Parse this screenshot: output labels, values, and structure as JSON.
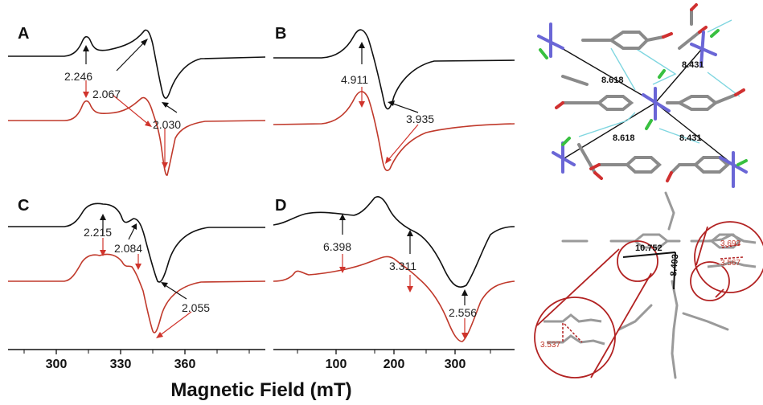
{
  "figure": {
    "xlabel": "Magnetic Field (mT)",
    "colors": {
      "black_trace": "#111111",
      "red_trace": "#c0392b",
      "arrow_black": "#111111",
      "arrow_red": "#d0342c"
    }
  },
  "panels": [
    {
      "label": "A",
      "gvalues": [
        "2.246",
        "2.067",
        "2.030"
      ]
    },
    {
      "label": "B",
      "gvalues": [
        "4.911",
        "3.935"
      ]
    },
    {
      "label": "C",
      "gvalues": [
        "2.215",
        "2.084",
        "2.055"
      ]
    },
    {
      "label": "D",
      "gvalues": [
        "6.398",
        "3.311",
        "2.556"
      ]
    }
  ],
  "axes": {
    "left": {
      "ticks": [
        "300",
        "330",
        "360"
      ]
    },
    "right": {
      "ticks": [
        "100",
        "200",
        "300"
      ]
    }
  },
  "structures": {
    "top_distances": [
      "8.618",
      "8.431",
      "8.618",
      "8.431"
    ],
    "bottom_distances": [
      "10.752",
      "8.493"
    ],
    "bottom_red_distances": [
      "3.693",
      "3.567",
      "3.537"
    ]
  }
}
